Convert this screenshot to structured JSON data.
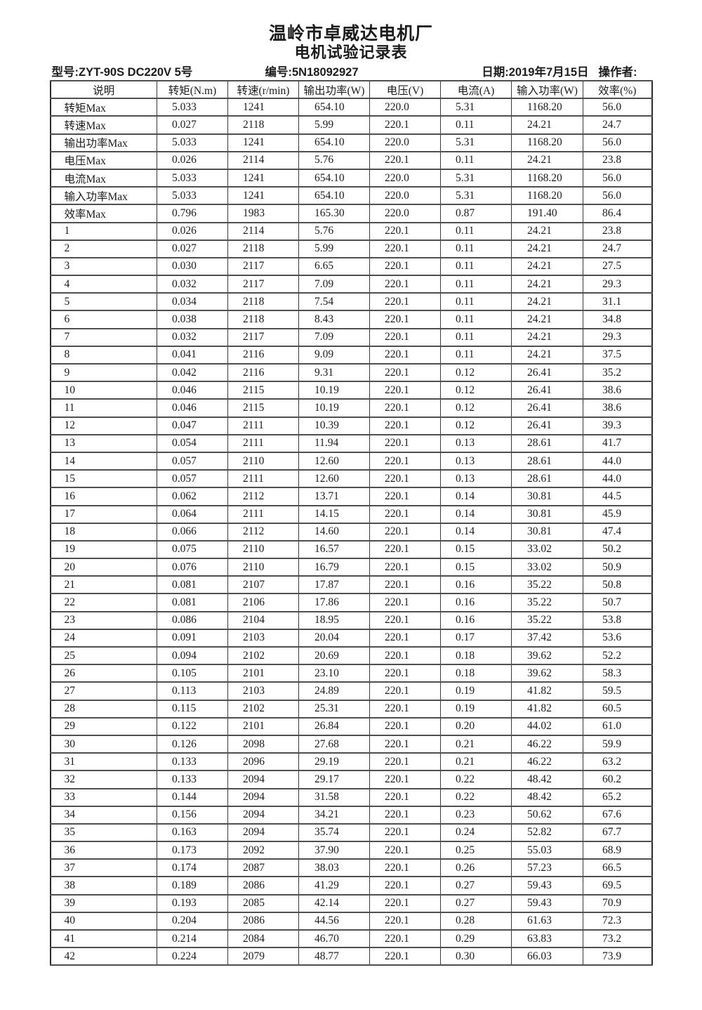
{
  "page": {
    "title": "温岭市卓威达电机厂",
    "subtitle": "电机试验记录表",
    "model_label": "型号:ZYT-90S DC220V 5号",
    "serial_label": "编号:5N18092927",
    "date_label": "日期:2019年7月15日",
    "operator_label": "操作者:"
  },
  "table": {
    "columns": [
      "说明",
      "转矩(N.m)",
      "转速(r/min)",
      "输出功率(W)",
      "电压(V)",
      "电流(A)",
      "输入功率(W)",
      "效率(%)"
    ],
    "rows": [
      [
        "转矩Max",
        "5.033",
        "1241",
        "654.10",
        "220.0",
        "5.31",
        "1168.20",
        "56.0"
      ],
      [
        "转速Max",
        "0.027",
        "2118",
        "5.99",
        "220.1",
        "0.11",
        "24.21",
        "24.7"
      ],
      [
        "输出功率Max",
        "5.033",
        "1241",
        "654.10",
        "220.0",
        "5.31",
        "1168.20",
        "56.0"
      ],
      [
        "电压Max",
        "0.026",
        "2114",
        "5.76",
        "220.1",
        "0.11",
        "24.21",
        "23.8"
      ],
      [
        "电流Max",
        "5.033",
        "1241",
        "654.10",
        "220.0",
        "5.31",
        "1168.20",
        "56.0"
      ],
      [
        "输入功率Max",
        "5.033",
        "1241",
        "654.10",
        "220.0",
        "5.31",
        "1168.20",
        "56.0"
      ],
      [
        "效率Max",
        "0.796",
        "1983",
        "165.30",
        "220.0",
        "0.87",
        "191.40",
        "86.4"
      ],
      [
        "1",
        "0.026",
        "2114",
        "5.76",
        "220.1",
        "0.11",
        "24.21",
        "23.8"
      ],
      [
        "2",
        "0.027",
        "2118",
        "5.99",
        "220.1",
        "0.11",
        "24.21",
        "24.7"
      ],
      [
        "3",
        "0.030",
        "2117",
        "6.65",
        "220.1",
        "0.11",
        "24.21",
        "27.5"
      ],
      [
        "4",
        "0.032",
        "2117",
        "7.09",
        "220.1",
        "0.11",
        "24.21",
        "29.3"
      ],
      [
        "5",
        "0.034",
        "2118",
        "7.54",
        "220.1",
        "0.11",
        "24.21",
        "31.1"
      ],
      [
        "6",
        "0.038",
        "2118",
        "8.43",
        "220.1",
        "0.11",
        "24.21",
        "34.8"
      ],
      [
        "7",
        "0.032",
        "2117",
        "7.09",
        "220.1",
        "0.11",
        "24.21",
        "29.3"
      ],
      [
        "8",
        "0.041",
        "2116",
        "9.09",
        "220.1",
        "0.11",
        "24.21",
        "37.5"
      ],
      [
        "9",
        "0.042",
        "2116",
        "9.31",
        "220.1",
        "0.12",
        "26.41",
        "35.2"
      ],
      [
        "10",
        "0.046",
        "2115",
        "10.19",
        "220.1",
        "0.12",
        "26.41",
        "38.6"
      ],
      [
        "11",
        "0.046",
        "2115",
        "10.19",
        "220.1",
        "0.12",
        "26.41",
        "38.6"
      ],
      [
        "12",
        "0.047",
        "2111",
        "10.39",
        "220.1",
        "0.12",
        "26.41",
        "39.3"
      ],
      [
        "13",
        "0.054",
        "2111",
        "11.94",
        "220.1",
        "0.13",
        "28.61",
        "41.7"
      ],
      [
        "14",
        "0.057",
        "2110",
        "12.60",
        "220.1",
        "0.13",
        "28.61",
        "44.0"
      ],
      [
        "15",
        "0.057",
        "2111",
        "12.60",
        "220.1",
        "0.13",
        "28.61",
        "44.0"
      ],
      [
        "16",
        "0.062",
        "2112",
        "13.71",
        "220.1",
        "0.14",
        "30.81",
        "44.5"
      ],
      [
        "17",
        "0.064",
        "2111",
        "14.15",
        "220.1",
        "0.14",
        "30.81",
        "45.9"
      ],
      [
        "18",
        "0.066",
        "2112",
        "14.60",
        "220.1",
        "0.14",
        "30.81",
        "47.4"
      ],
      [
        "19",
        "0.075",
        "2110",
        "16.57",
        "220.1",
        "0.15",
        "33.02",
        "50.2"
      ],
      [
        "20",
        "0.076",
        "2110",
        "16.79",
        "220.1",
        "0.15",
        "33.02",
        "50.9"
      ],
      [
        "21",
        "0.081",
        "2107",
        "17.87",
        "220.1",
        "0.16",
        "35.22",
        "50.8"
      ],
      [
        "22",
        "0.081",
        "2106",
        "17.86",
        "220.1",
        "0.16",
        "35.22",
        "50.7"
      ],
      [
        "23",
        "0.086",
        "2104",
        "18.95",
        "220.1",
        "0.16",
        "35.22",
        "53.8"
      ],
      [
        "24",
        "0.091",
        "2103",
        "20.04",
        "220.1",
        "0.17",
        "37.42",
        "53.6"
      ],
      [
        "25",
        "0.094",
        "2102",
        "20.69",
        "220.1",
        "0.18",
        "39.62",
        "52.2"
      ],
      [
        "26",
        "0.105",
        "2101",
        "23.10",
        "220.1",
        "0.18",
        "39.62",
        "58.3"
      ],
      [
        "27",
        "0.113",
        "2103",
        "24.89",
        "220.1",
        "0.19",
        "41.82",
        "59.5"
      ],
      [
        "28",
        "0.115",
        "2102",
        "25.31",
        "220.1",
        "0.19",
        "41.82",
        "60.5"
      ],
      [
        "29",
        "0.122",
        "2101",
        "26.84",
        "220.1",
        "0.20",
        "44.02",
        "61.0"
      ],
      [
        "30",
        "0.126",
        "2098",
        "27.68",
        "220.1",
        "0.21",
        "46.22",
        "59.9"
      ],
      [
        "31",
        "0.133",
        "2096",
        "29.19",
        "220.1",
        "0.21",
        "46.22",
        "63.2"
      ],
      [
        "32",
        "0.133",
        "2094",
        "29.17",
        "220.1",
        "0.22",
        "48.42",
        "60.2"
      ],
      [
        "33",
        "0.144",
        "2094",
        "31.58",
        "220.1",
        "0.22",
        "48.42",
        "65.2"
      ],
      [
        "34",
        "0.156",
        "2094",
        "34.21",
        "220.1",
        "0.23",
        "50.62",
        "67.6"
      ],
      [
        "35",
        "0.163",
        "2094",
        "35.74",
        "220.1",
        "0.24",
        "52.82",
        "67.7"
      ],
      [
        "36",
        "0.173",
        "2092",
        "37.90",
        "220.1",
        "0.25",
        "55.03",
        "68.9"
      ],
      [
        "37",
        "0.174",
        "2087",
        "38.03",
        "220.1",
        "0.26",
        "57.23",
        "66.5"
      ],
      [
        "38",
        "0.189",
        "2086",
        "41.29",
        "220.1",
        "0.27",
        "59.43",
        "69.5"
      ],
      [
        "39",
        "0.193",
        "2085",
        "42.14",
        "220.1",
        "0.27",
        "59.43",
        "70.9"
      ],
      [
        "40",
        "0.204",
        "2086",
        "44.56",
        "220.1",
        "0.28",
        "61.63",
        "72.3"
      ],
      [
        "41",
        "0.214",
        "2084",
        "46.70",
        "220.1",
        "0.29",
        "63.83",
        "73.2"
      ],
      [
        "42",
        "0.224",
        "2079",
        "48.77",
        "220.1",
        "0.30",
        "66.03",
        "73.9"
      ]
    ]
  }
}
